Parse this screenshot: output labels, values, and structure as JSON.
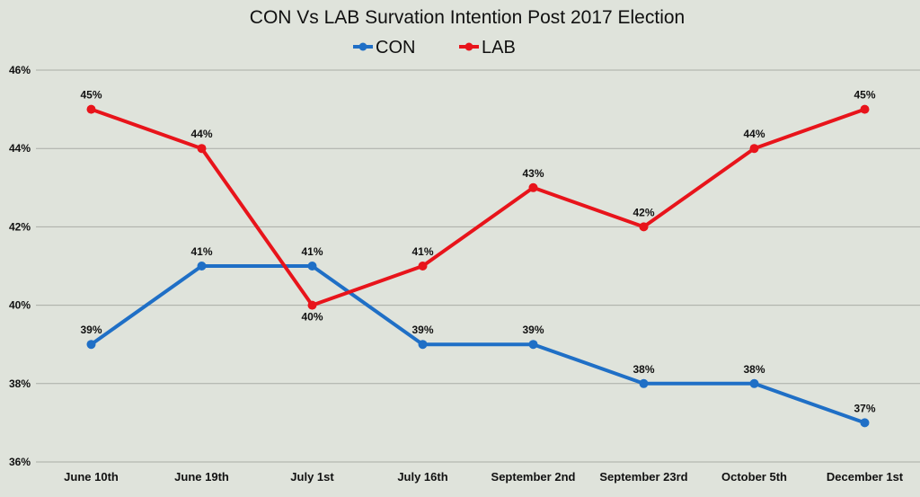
{
  "chart_data": {
    "type": "line",
    "title": "CON Vs LAB Survation Intention Post 2017 Election",
    "categories": [
      "June 10th",
      "June 19th",
      "July 1st",
      "July 16th",
      "September 2nd",
      "September 23rd",
      "October 5th",
      "December 1st"
    ],
    "ylim": [
      36,
      46
    ],
    "yticks": [
      36,
      38,
      40,
      42,
      44,
      46
    ],
    "ytick_suffix": "%",
    "grid": true,
    "legend_position": "top-center",
    "series": [
      {
        "name": "CON",
        "color": "#1f6fc6",
        "values": [
          39,
          41,
          41,
          39,
          39,
          38,
          38,
          37
        ],
        "labels": [
          "39%",
          "41%",
          "41%",
          "39%",
          "39%",
          "38%",
          "38%",
          "37%"
        ],
        "label_position": [
          "above",
          "above",
          "above",
          "above",
          "above",
          "above",
          "above",
          "above"
        ]
      },
      {
        "name": "LAB",
        "color": "#e8141b",
        "values": [
          45,
          44,
          40,
          41,
          43,
          42,
          44,
          45
        ],
        "labels": [
          "45%",
          "44%",
          "40%",
          "41%",
          "43%",
          "42%",
          "44%",
          "45%"
        ],
        "label_position": [
          "above",
          "above",
          "below",
          "above",
          "above",
          "above",
          "above",
          "above"
        ]
      }
    ]
  }
}
